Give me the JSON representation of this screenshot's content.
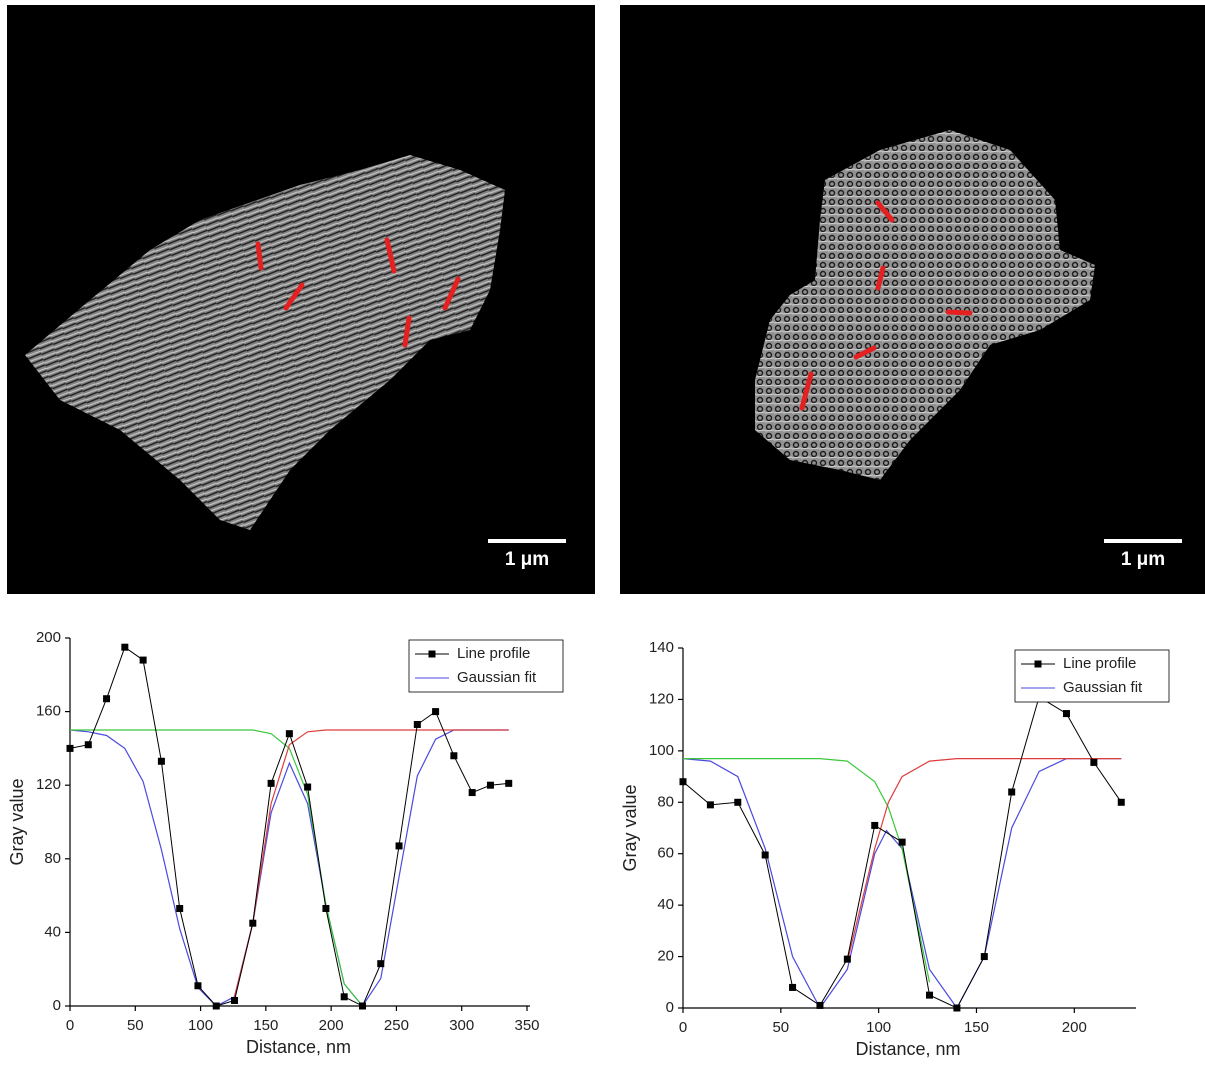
{
  "panels": [
    {
      "scale_bar": "1 μm"
    },
    {
      "scale_bar": "1 μm"
    }
  ],
  "chart_data": [
    {
      "type": "line",
      "x_label": "Distance, nm",
      "y_label": "Gray value",
      "xlim": [
        0,
        350
      ],
      "xticks": [
        0,
        50,
        100,
        150,
        200,
        250,
        300,
        350
      ],
      "ylim": [
        0,
        200
      ],
      "yticks": [
        0,
        40,
        80,
        120,
        160,
        200
      ],
      "legend": "upper right",
      "x": [
        0,
        14,
        28,
        42,
        56,
        70,
        84,
        98,
        112,
        126,
        140,
        154,
        168,
        182,
        196,
        210,
        224,
        238,
        252,
        266,
        280,
        294,
        308,
        322,
        336
      ],
      "series": [
        {
          "name": "Line profile",
          "color": "#000000",
          "markers": true,
          "values": [
            140,
            142,
            167,
            195,
            188,
            133,
            53,
            11,
            0,
            3,
            45,
            121,
            148,
            119,
            53,
            5,
            0,
            23,
            87,
            153,
            160,
            136,
            116,
            120,
            121
          ]
        },
        {
          "name": "Gaussian fit",
          "color": "#4a4ae0",
          "x": [
            0,
            14,
            28,
            42,
            56,
            70,
            84,
            98,
            112,
            126,
            140,
            154,
            168,
            182,
            196,
            210,
            224,
            238,
            252,
            266,
            280,
            294,
            308,
            322,
            336
          ],
          "values": [
            150,
            149,
            147,
            140,
            122,
            85,
            42,
            10,
            0,
            5,
            45,
            105,
            132,
            110,
            55,
            12,
            0,
            15,
            70,
            125,
            145,
            150,
            150,
            150,
            150
          ]
        },
        {
          "color": "#3cc83c",
          "x": [
            0,
            140,
            154,
            168,
            182,
            196,
            210,
            224
          ],
          "values": [
            150,
            150,
            148,
            140,
            115,
            55,
            12,
            0
          ]
        },
        {
          "color": "#e03c3c",
          "x": [
            126,
            140,
            154,
            168,
            182,
            196,
            336
          ],
          "values": [
            5,
            45,
            110,
            142,
            149,
            150,
            150
          ]
        }
      ]
    },
    {
      "type": "line",
      "x_label": "Distance, nm",
      "y_label": "Gray value",
      "xlim": [
        0,
        230
      ],
      "xticks": [
        0,
        50,
        100,
        150,
        200
      ],
      "ylim": [
        0,
        140
      ],
      "yticks": [
        0,
        20,
        40,
        60,
        80,
        100,
        120,
        140
      ],
      "legend": "upper right",
      "x": [
        0,
        14,
        28,
        42,
        56,
        70,
        84,
        98,
        112,
        126,
        140,
        154,
        168,
        182,
        196,
        210,
        224
      ],
      "series": [
        {
          "name": "Line profile",
          "color": "#000000",
          "markers": true,
          "values": [
            88,
            79,
            80,
            59.5,
            8,
            1,
            19,
            71,
            64.5,
            5,
            0,
            20,
            84,
            121,
            114.5,
            95.5,
            80
          ]
        },
        {
          "name": "Gaussian fit",
          "color": "#4a4ae0",
          "x": [
            0,
            14,
            28,
            42,
            56,
            70,
            84,
            98,
            104,
            112,
            126,
            140,
            154,
            168,
            182,
            196,
            210,
            224
          ],
          "values": [
            97,
            96,
            90,
            62,
            20,
            0,
            15,
            60,
            69,
            62,
            15,
            0,
            20,
            70,
            92,
            97,
            97,
            97
          ]
        },
        {
          "color": "#3cc83c",
          "x": [
            0,
            70,
            84,
            98,
            105,
            112,
            126
          ],
          "values": [
            97,
            97,
            96,
            88,
            78,
            62,
            10
          ]
        },
        {
          "color": "#e03c3c",
          "x": [
            84,
            98,
            105,
            112,
            126,
            140,
            224
          ],
          "values": [
            18,
            62,
            80,
            90,
            96,
            97,
            97
          ]
        }
      ]
    }
  ]
}
